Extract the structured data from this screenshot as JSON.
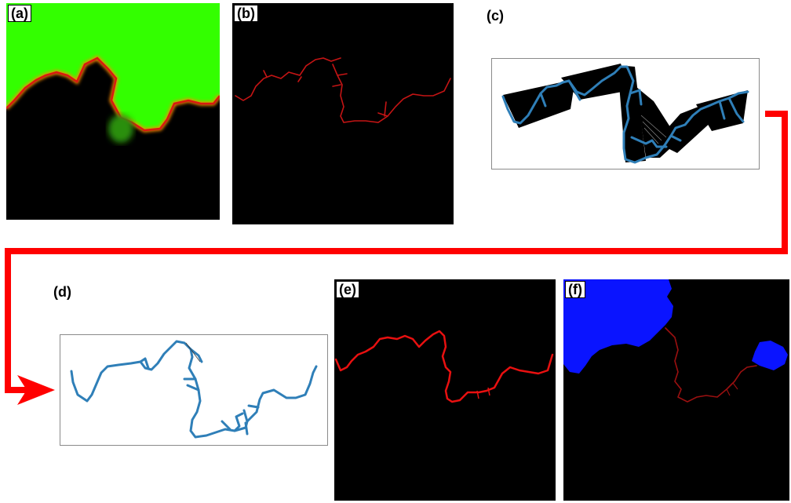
{
  "panels": {
    "a": {
      "label": "(a)"
    },
    "b": {
      "label": "(b)"
    },
    "c": {
      "label": "(c)"
    },
    "d": {
      "label": "(d)"
    },
    "e": {
      "label": "(e)"
    },
    "f": {
      "label": "(f)"
    }
  },
  "colors": {
    "background": "#000000",
    "probability_green": "#33ff00",
    "boundary_red": "#e81010",
    "skeleton_blue": "#2f7fb8",
    "region_blue": "#0a14ff",
    "flow_arrow_red": "#ff0000"
  }
}
